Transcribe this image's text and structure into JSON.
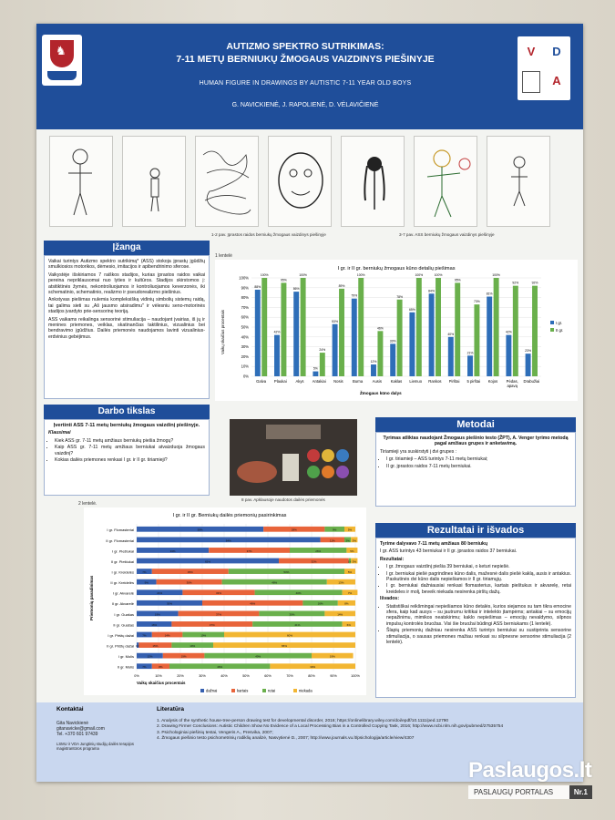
{
  "header": {
    "title_line1": "AUTIZMO SPEKTRO SUTRIKIMAS:",
    "title_line2": "7-11 METŲ BERNIUKŲ ŽMOGAUS VAIZDINYS PIEŠINYJE",
    "subtitle": "HUMAN FIGURE IN DRAWINGS BY AUTISTIC 7-11 YEAR OLD BOYS",
    "authors": "G. NAVICKIENĖ, J. RAPOLIENĖ, D. VĖLAVIČIENĖ",
    "right_logo_letters": [
      "V",
      "D",
      "A"
    ]
  },
  "drawings": {
    "caption_left": "1-2 pav. Įprastos raidos berniukų žmogaus vaizdinys piešinyje",
    "caption_right": "3-7 pav. ASS berniukų žmogaus vaizdinys piešinyje"
  },
  "intro": {
    "title": "Įžanga",
    "p1": "Vaikai turintys Autizmo spektro sutrikimą* (ASS) stokoja įprastų įgūdžių smulkiosios motorikos, dėmesio, imitacijos ir apibendrinimo sferose.",
    "p2": "Vaikystėje išskiriamos 7 raiškos stadijos, kurias įprastos raidos vaikai pereina nepriklausomai nuo lyties ir kultūros. Stadijos skirstomos į: atsitiktinės žymės, nekontroliuojamos ir kontroliuojamos keverzonės, iki schematinio, schematinio, realizmo ir pseudorealizmo piešinius.",
    "p3": "Ankstyvas piešimas nulemia kompleksišką vidinių simbolių sistemų raidą, tai galima sieti su „Aš jausmo atsiradimu\" ir vėlesniu seno-motorinės stadijos įvardyto prie-sensorinę teoriją.",
    "p4": "ASS vaikams reikalinga sensorinė stimuliacija – naudojant įvairias, iš jų ir menines priemones, veiklas, skatinančias taktilinius, vizualinius bei bendravimo įgūdžius. Dailės priemonės naudojamos lavinti vizualinius-erdvinius gebėjimus."
  },
  "aim": {
    "title": "Darbo tikslas",
    "goal": "Įvertinti ASS 7-11 metų berniukų žmogaus vaizdinį piešinyje.",
    "questions_label": "Klausimai",
    "questions": [
      "Kiek ASS gr. 7-11 metų amžiaus berniukų piešia žmogų?",
      "Kaip ASS gr. 7-11 metų amžiaus berniukai atvaizduoja žmogaus vaizdinį?",
      "Kokias dailės priemones renkasi I gr. ir II gr. tiriamieji?"
    ]
  },
  "photo": {
    "caption": "8 pav. Apklausoje naudotos dailės priemonės"
  },
  "methods": {
    "title": "Metodai",
    "lead": "Tyrimas atliktas naudojant Žmogaus piešinio testo (ŽPT), A. Venger tyrimo metodą pagal amžiaus grupes ir anketavimą.",
    "groups_label": "Tiriamieji yra suskirstyti į dvi grupes :",
    "groups": [
      "I gr. tiriamieji – ASS turintys 7-11 metų berniukai;",
      "II gr. įprastos raidos 7-11 metų berniukai."
    ]
  },
  "results": {
    "title": "Rezultatai ir išvados",
    "lead": "Tyrime dalyvavo 7-11 metų amžiaus 80 berniukų",
    "lead2": "I gr. ASS turintys 43 berniukai ir II gr. įprastos raidos 37 berniukai.",
    "results_label": "Rezultatai:",
    "results": [
      "I gr. žmogaus vaizdinį piešia 39 berniukai, o keturi nepiešė.",
      "I gr. berniukai piešė pagrindines kūno dalis, mažesnė dalis piešė kaklą, ausis ir antakius. Paskutinės dvi kūno dalis nepiešiamos ir II gr. tiriamųjų.",
      "I gr. berniukai dažniausiai renkasi flomasterius, kartais pieštukus ir akvarelę, retai kreideles ir molį, beveik niekada nesirenka pirštų dažų."
    ],
    "conclusions_label": "Išvados:",
    "conclusions": [
      "Statistiškai reikšmingai nepiešiamos kūno detalės, kurios siejamos su tam tikra emocine sfera, kaip kad ausys – su jautrumu kritikai ir intelekto įtampėms; antakiai – su emocijų nepažinimu, mimikos neatskirimu; kaklo nepiešimas – emocijų nevaldymo, silpnos impulsų kontrolės bruožas. Visi šie bruožai būdingi ASS berniukams (1 lentelė).",
      "Šlapių priemonių dažniau nesirenka ASS turintys berniukai su sustiprinta sensorine stimuliacija, o sausas priemones mažiau renkasi su silpnesne sensorine stimuliacija (2 lentelė)."
    ]
  },
  "chart_data": [
    {
      "type": "bar",
      "label": "1 lentelė",
      "title": "I gr. ir II gr. berniukų žmogaus kūno detalių piešimas",
      "xlabel": "Žmogaus kūno dalys",
      "ylabel": "Vaikų skaičius procentais",
      "ylim": [
        0,
        100
      ],
      "yticks": [
        "0%",
        "10%",
        "20%",
        "30%",
        "40%",
        "50%",
        "60%",
        "70%",
        "80%",
        "90%",
        "100%"
      ],
      "categories": [
        "Galva",
        "Plaukai",
        "Akys",
        "Antakiai",
        "Nosis",
        "Burna",
        "Ausis",
        "Kaklas",
        "Liemuo",
        "Rankos",
        "Pirštai",
        "5 pirštai",
        "Kojos",
        "Pėdas, apavą",
        "Drabužiai"
      ],
      "series": [
        {
          "name": "I gr.",
          "color": "#2e6eb8",
          "values": [
            88,
            42,
            86,
            5,
            53,
            79,
            12,
            33,
            65,
            84,
            40,
            21,
            81,
            42,
            23
          ]
        },
        {
          "name": "II gr.",
          "color": "#6ab04c",
          "values": [
            100,
            95,
            100,
            24,
            89,
            100,
            46,
            78,
            100,
            100,
            95,
            73,
            100,
            92,
            92
          ]
        }
      ],
      "data_labels": {
        "I gr.": [
          "88%",
          "42%",
          "86%",
          "5%",
          "53%",
          "79%",
          "12%",
          "33%",
          "65%",
          "84%",
          "40%",
          "21%",
          "81%",
          "42%",
          "23%"
        ],
        "II gr.": [
          "100%",
          "95%",
          "100%",
          "24%",
          "89%",
          "100%",
          "46%",
          "78%",
          "100%",
          "100%",
          "95%",
          "73%",
          "100%",
          "92%",
          "92%"
        ]
      },
      "legend": "right"
    },
    {
      "type": "bar",
      "orientation": "horizontal-stacked",
      "label": "2 lentelė.",
      "title": "I gr. ir II gr. Berniukų dailės priemonių pasirinkimas",
      "xlabel": "Vaikų skaičius procentais",
      "ylabel": "Priemonių pavadinimas",
      "xlim": [
        0,
        100
      ],
      "xticks": [
        "0%",
        "10%",
        "20%",
        "30%",
        "40%",
        "50%",
        "60%",
        "70%",
        "80%",
        "90%",
        "100%"
      ],
      "categories": [
        "I gr. Flomasteriai",
        "II gr. Flomasteriai",
        "I gr. Pieštukai",
        "II gr. Pieštukai",
        "I gr. Kreidelės",
        "II gr. Kreidelės",
        "I gr. Akvarelė",
        "II gr. Akvarelė",
        "I gr. Guašas",
        "II gr. Guašas",
        "I gr. Pirštų dažai",
        "II gr. Pirštų dažai",
        "I gr. Molis",
        "II gr. Molis"
      ],
      "series": [
        {
          "name": "dažnai",
          "color": "#3560b0",
          "values": [
            58,
            84,
            33,
            65,
            7,
            9,
            21,
            30,
            19,
            16,
            7,
            1,
            12,
            7
          ]
        },
        {
          "name": "kartais",
          "color": "#e8643a",
          "values": [
            28,
            11,
            37,
            32,
            35,
            30,
            33,
            46,
            37,
            37,
            14,
            15,
            19,
            8
          ]
        },
        {
          "name": "retai",
          "color": "#6ab04c",
          "values": [
            9,
            3,
            26,
            1,
            53,
            48,
            40,
            16,
            30,
            41,
            19,
            19,
            49,
            46
          ]
        },
        {
          "name": "niekada",
          "color": "#f2b632",
          "values": [
            5,
            3,
            5,
            3,
            5,
            13,
            7,
            8,
            14,
            6,
            60,
            65,
            19,
            39
          ]
        }
      ],
      "data_labels": {
        "dažnai": [
          "58%",
          "84%",
          "33%",
          "65%",
          "7%",
          "9%",
          "21%",
          "30%",
          "19%",
          "16%",
          "7%",
          "1%",
          "12%",
          "7%"
        ],
        "kartais": [
          "28%",
          "11%",
          "37%",
          "32%",
          "35%",
          "30%",
          "33%",
          "46%",
          "37%",
          "37%",
          "14%",
          "15%",
          "19%",
          "8%"
        ],
        "retai": [
          "9%",
          "3%",
          "26%",
          "1%",
          "53%",
          "48%",
          "40%",
          "16%",
          "30%",
          "41%",
          "19%",
          "19%",
          "49%",
          "46%"
        ],
        "niekada": [
          "5%",
          "3%",
          "5%",
          "3%",
          "5%",
          "13%",
          "7%",
          "8%",
          "14%",
          "6%",
          "60%",
          "65%",
          "19%",
          "39%"
        ]
      },
      "legend": "bottom"
    }
  ],
  "footer": {
    "contacts_title": "Kontaktai",
    "contact_name": "Gita Navickienė",
    "contact_email": "gitanavicke@gmail.com",
    "contact_phone": "Tel. +370 601 97439",
    "contact_note": "LSMU ir VDA Jungtinių studijų dailės terapijos magistrantūros programa",
    "lit_title": "Literatūra",
    "references": [
      "1.  Analysis of the synthetic house-tree-person drawing test for developmental disorder, 2016; https://onlinelibrary.wiley.com/doi/epdf/10.1111/ped.12790",
      "2.  Drawing Firmer Conclusions: Autistic Children Show No Evidence of a Local Processing Bias in a Controlled Copying Task, 2016; http://www.ncbi.nlm.nih.gov/pubmed/27535754",
      "3.  Psichologiniai piešinių testai, Vengeris A., Presvika, 2007;",
      "4.  Žmogaus piešinio testo psichometrinių rodiklių analizė, Nasvytienė D., 2007; http://www.journals.vu.lt/psichologija/article/view/4307"
    ]
  },
  "watermark": {
    "brand": "Paslaugos.lt",
    "portal": "PASLAUGŲ PORTALAS",
    "nr": "Nr.1"
  }
}
